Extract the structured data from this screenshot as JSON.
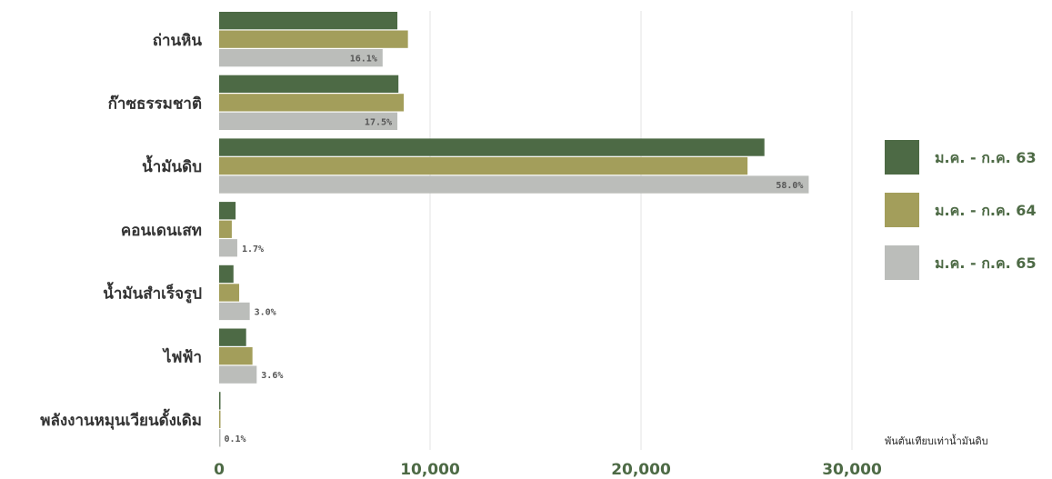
{
  "chart_data": {
    "type": "bar",
    "orientation": "horizontal",
    "categories": [
      "ถ่านหิน",
      "ก๊าซธรรมชาติ",
      "น้ำมันดิบ",
      "คอนเดนเสท",
      "น้ำมันสำเร็จรูป",
      "ไฟฟ้า",
      "พลังงานหมุนเวียนดั้งเดิม"
    ],
    "series": [
      {
        "name": "ม.ค. - ก.ค. 63",
        "color": "#4d6a45",
        "values": [
          8450,
          8500,
          25850,
          780,
          680,
          1280,
          60
        ]
      },
      {
        "name": "ม.ค. - ก.ค. 64",
        "color": "#a39e5b",
        "values": [
          8950,
          8750,
          25050,
          600,
          950,
          1580,
          40
        ]
      },
      {
        "name": "ม.ค. - ก.ค. 65",
        "color": "#bbbdba",
        "values": [
          7750,
          8450,
          27950,
          860,
          1450,
          1780,
          20
        ]
      }
    ],
    "data_labels": [
      "16.1%",
      "17.5%",
      "58.0%",
      "1.7%",
      "3.0%",
      "3.6%",
      "0.1%"
    ],
    "xlim": [
      0,
      30000
    ],
    "xticks": [
      0,
      10000,
      20000,
      30000
    ],
    "xtick_labels": [
      "0",
      "10,000",
      "20,000",
      "30,000"
    ],
    "unit_label": "พันตันเทียบเท่าน้ำมันดิบ",
    "grid": "vertical",
    "legend_position": "right"
  }
}
